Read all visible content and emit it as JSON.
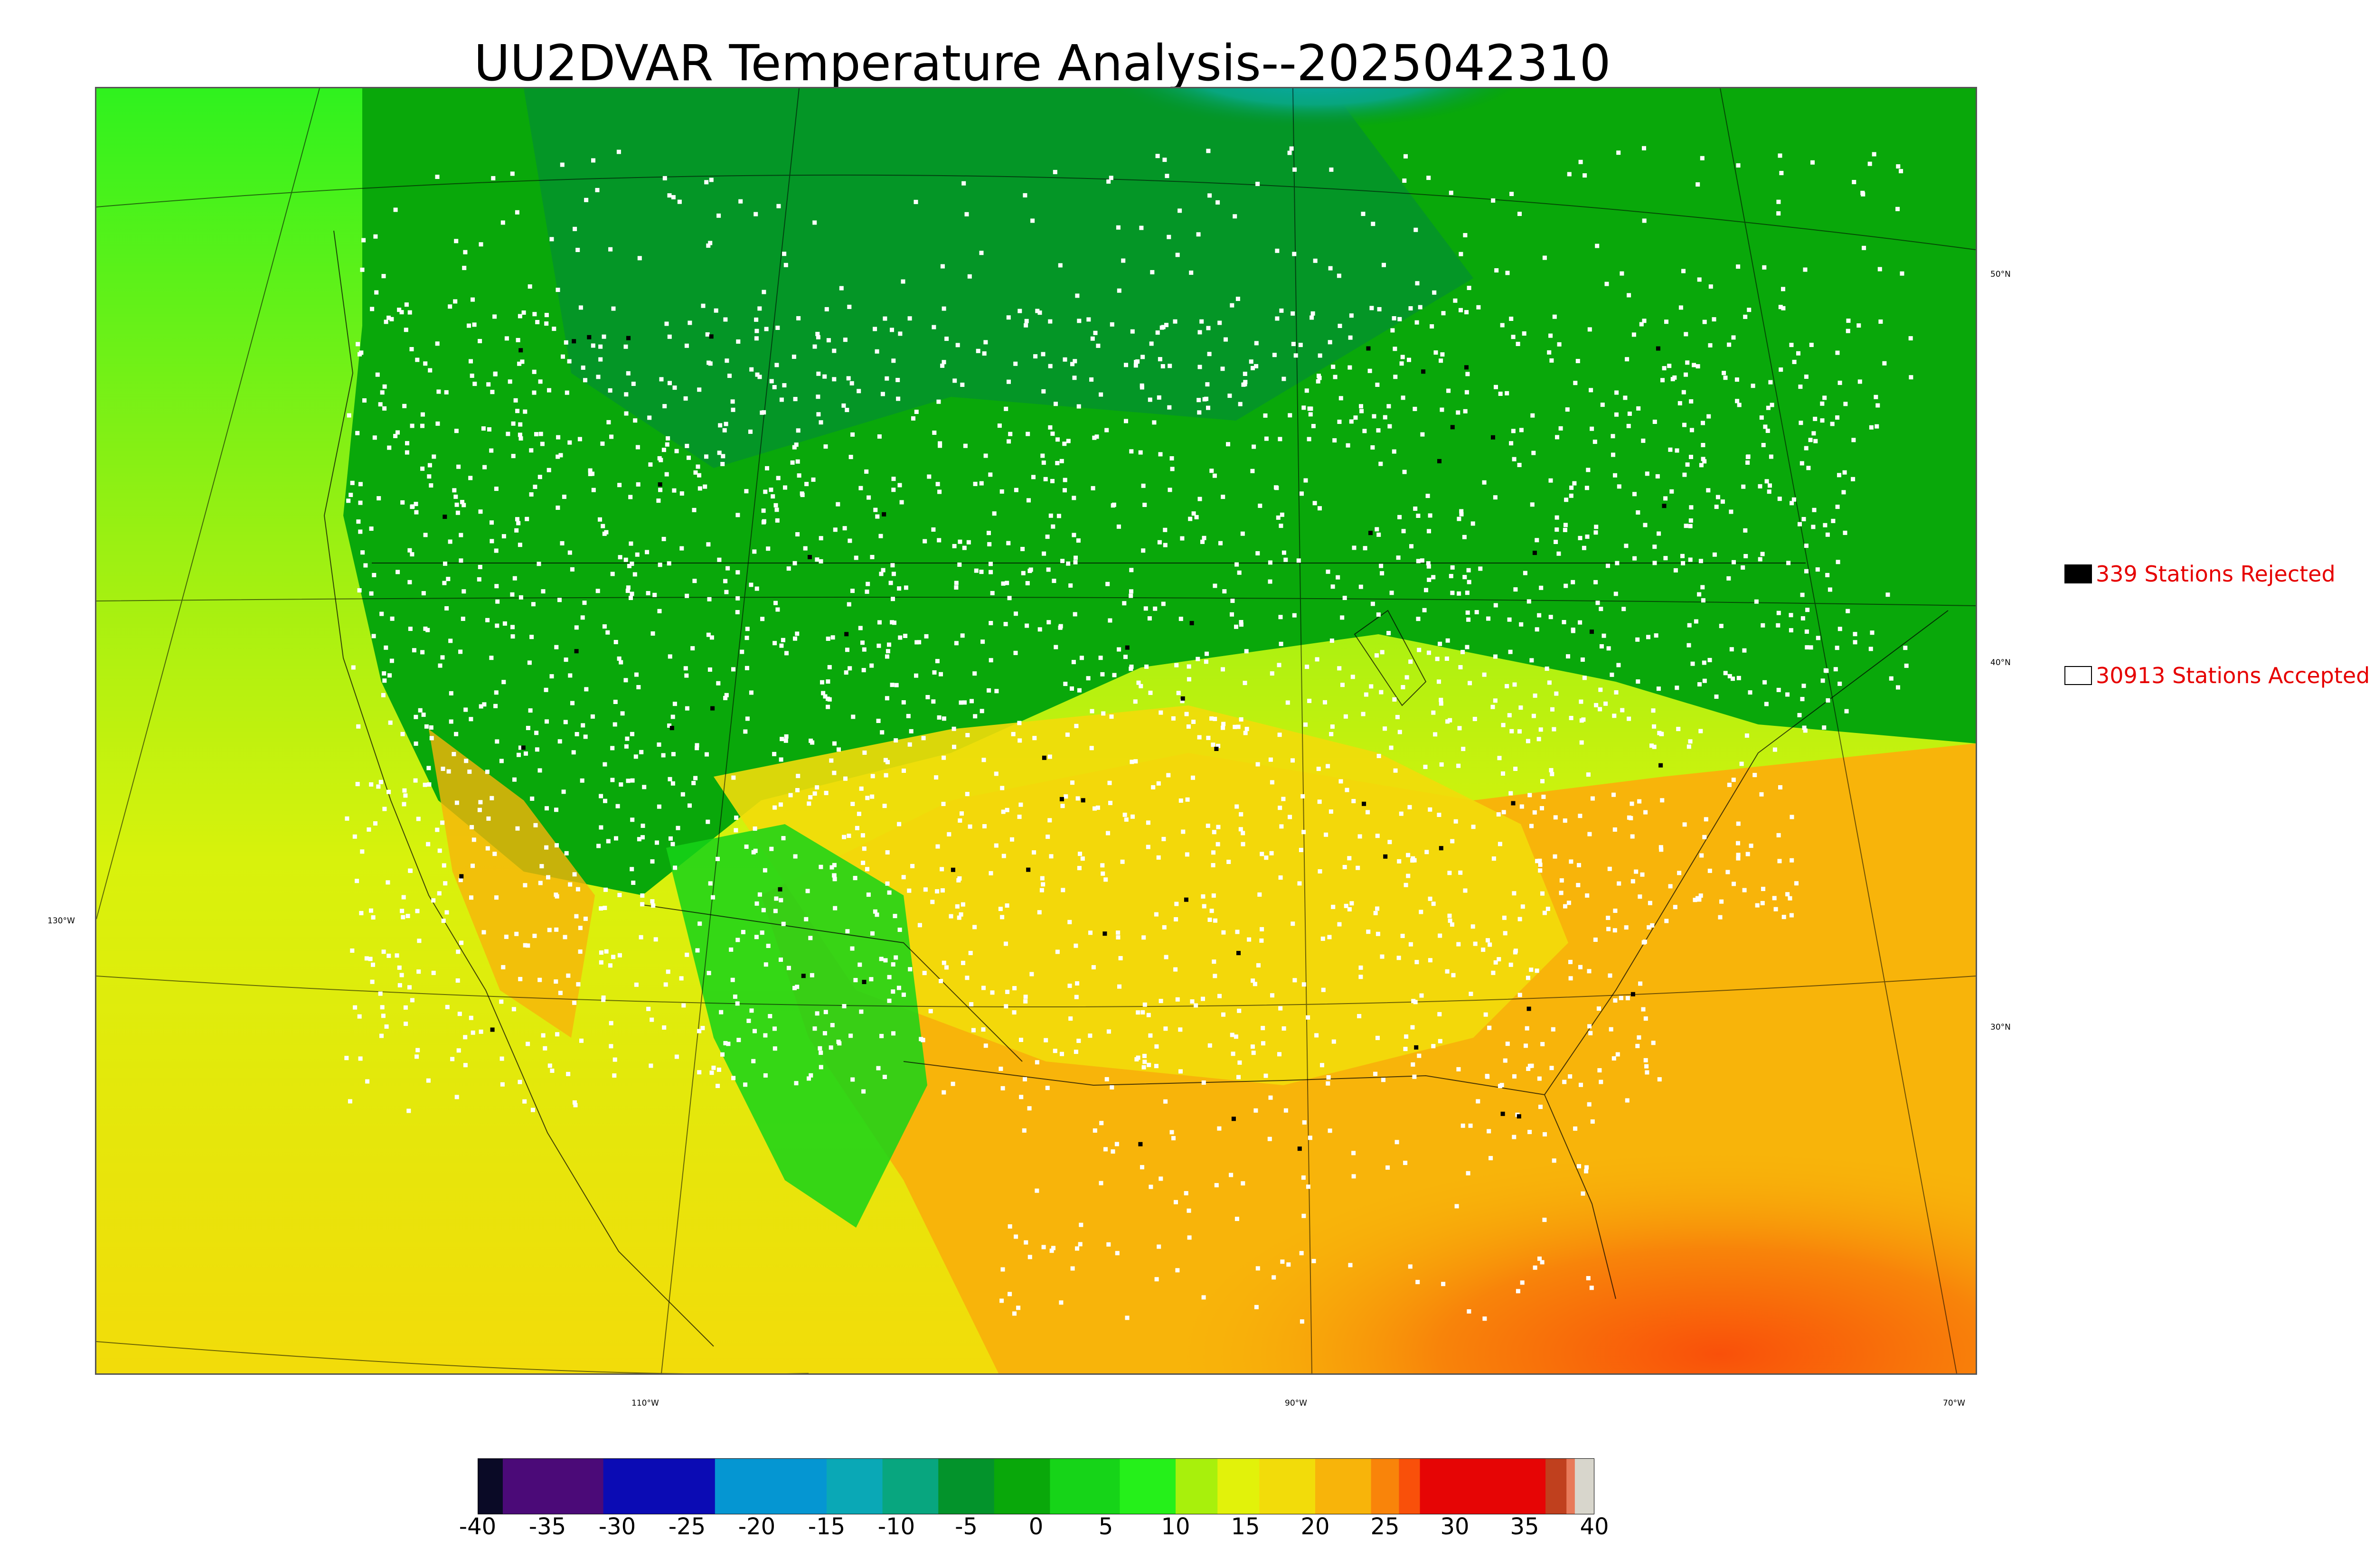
{
  "title": "UU2DVAR Temperature Analysis--2025042310",
  "map": {
    "lat_labels": [
      "50°N",
      "40°N",
      "30°N"
    ],
    "lon_labels": [
      "130°W",
      "110°W",
      "90°W",
      "70°W"
    ]
  },
  "legend": {
    "rejected": {
      "label": "339 Stations Rejected",
      "count": 339,
      "swatch_color": "#000000"
    },
    "accepted": {
      "label": "30913 Stations Accepted",
      "count": 30913,
      "swatch_color": "#ffffff"
    },
    "text_color": "#e60000"
  },
  "colorbar": {
    "ticks": [
      "-40",
      "-35",
      "-30",
      "-25",
      "-20",
      "-15",
      "-10",
      "-5",
      "0",
      "5",
      "10",
      "15",
      "20",
      "25",
      "30",
      "35",
      "40"
    ],
    "range": [
      -40,
      40
    ],
    "bands": [
      {
        "from": -40,
        "to": -38.2,
        "color": "#0a0a26"
      },
      {
        "from": -38.2,
        "to": -31,
        "color": "#4b0a78"
      },
      {
        "from": -31,
        "to": -23,
        "color": "#0b0bb4"
      },
      {
        "from": -23,
        "to": -15,
        "color": "#0596d2"
      },
      {
        "from": -15,
        "to": -11,
        "color": "#0aa8b6"
      },
      {
        "from": -11,
        "to": -7,
        "color": "#08a67f"
      },
      {
        "from": -7,
        "to": -3,
        "color": "#03932b"
      },
      {
        "from": -3,
        "to": 1,
        "color": "#09a80a"
      },
      {
        "from": 1,
        "to": 6,
        "color": "#16d418"
      },
      {
        "from": 6,
        "to": 10,
        "color": "#25f01a"
      },
      {
        "from": 10,
        "to": 13,
        "color": "#a8f00c"
      },
      {
        "from": 13,
        "to": 16,
        "color": "#e2f20a"
      },
      {
        "from": 16,
        "to": 20,
        "color": "#f2dc0a"
      },
      {
        "from": 20,
        "to": 24,
        "color": "#f8b40a"
      },
      {
        "from": 24,
        "to": 26,
        "color": "#f9840a"
      },
      {
        "from": 26,
        "to": 27.5,
        "color": "#f9500a"
      },
      {
        "from": 27.5,
        "to": 36.5,
        "color": "#e60505"
      },
      {
        "from": 36.5,
        "to": 38,
        "color": "#c0401e"
      },
      {
        "from": 38,
        "to": 38.6,
        "color": "#e87a5a"
      },
      {
        "from": 38.6,
        "to": 40,
        "color": "#d8d6cc"
      }
    ]
  }
}
